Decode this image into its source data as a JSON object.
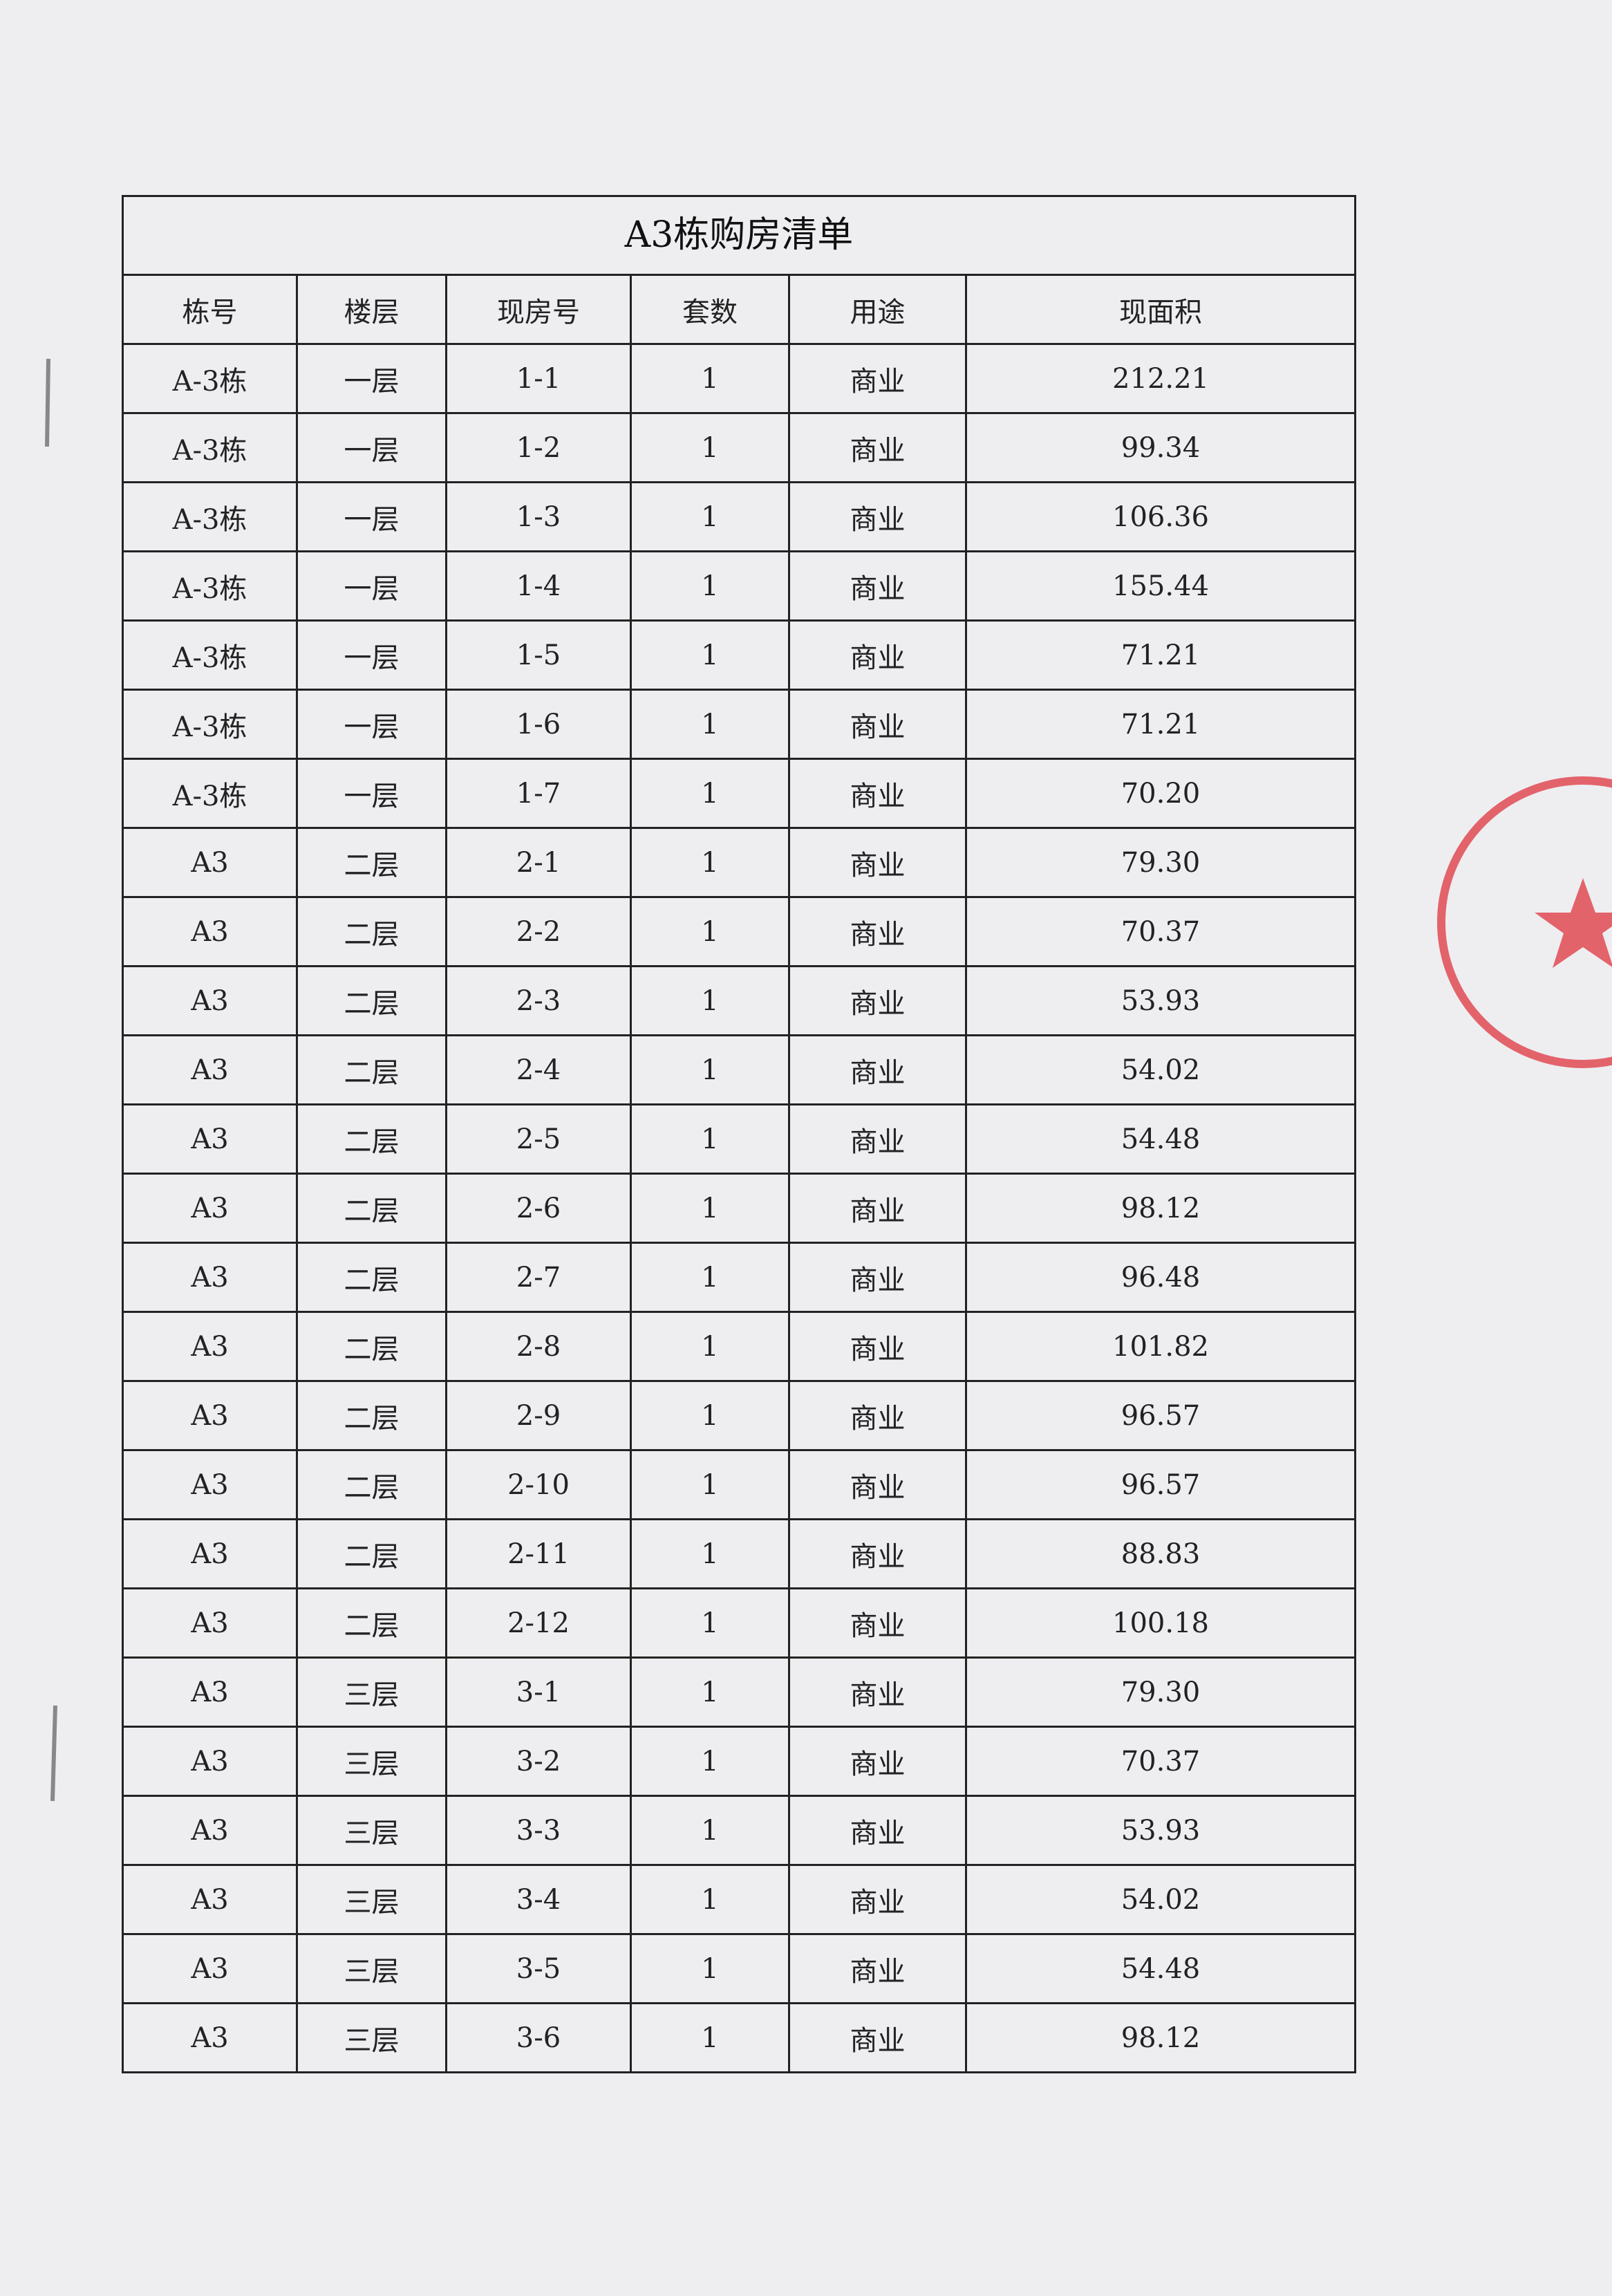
{
  "title": "A3栋购房清单",
  "table": {
    "header": [
      "栋号",
      "楼层",
      "现房号",
      "套数",
      "用途",
      "现面积"
    ],
    "rows": [
      [
        "A-3栋",
        "一层",
        "1-1",
        "1",
        "商业",
        "212.21"
      ],
      [
        "A-3栋",
        "一层",
        "1-2",
        "1",
        "商业",
        "99.34"
      ],
      [
        "A-3栋",
        "一层",
        "1-3",
        "1",
        "商业",
        "106.36"
      ],
      [
        "A-3栋",
        "一层",
        "1-4",
        "1",
        "商业",
        "155.44"
      ],
      [
        "A-3栋",
        "一层",
        "1-5",
        "1",
        "商业",
        "71.21"
      ],
      [
        "A-3栋",
        "一层",
        "1-6",
        "1",
        "商业",
        "71.21"
      ],
      [
        "A-3栋",
        "一层",
        "1-7",
        "1",
        "商业",
        "70.20"
      ],
      [
        "A3",
        "二层",
        "2-1",
        "1",
        "商业",
        "79.30"
      ],
      [
        "A3",
        "二层",
        "2-2",
        "1",
        "商业",
        "70.37"
      ],
      [
        "A3",
        "二层",
        "2-3",
        "1",
        "商业",
        "53.93"
      ],
      [
        "A3",
        "二层",
        "2-4",
        "1",
        "商业",
        "54.02"
      ],
      [
        "A3",
        "二层",
        "2-5",
        "1",
        "商业",
        "54.48"
      ],
      [
        "A3",
        "二层",
        "2-6",
        "1",
        "商业",
        "98.12"
      ],
      [
        "A3",
        "二层",
        "2-7",
        "1",
        "商业",
        "96.48"
      ],
      [
        "A3",
        "二层",
        "2-8",
        "1",
        "商业",
        "101.82"
      ],
      [
        "A3",
        "二层",
        "2-9",
        "1",
        "商业",
        "96.57"
      ],
      [
        "A3",
        "二层",
        "2-10",
        "1",
        "商业",
        "96.57"
      ],
      [
        "A3",
        "二层",
        "2-11",
        "1",
        "商业",
        "88.83"
      ],
      [
        "A3",
        "二层",
        "2-12",
        "1",
        "商业",
        "100.18"
      ],
      [
        "A3",
        "三层",
        "3-1",
        "1",
        "商业",
        "79.30"
      ],
      [
        "A3",
        "三层",
        "3-2",
        "1",
        "商业",
        "70.37"
      ],
      [
        "A3",
        "三层",
        "3-3",
        "1",
        "商业",
        "53.93"
      ],
      [
        "A3",
        "三层",
        "3-4",
        "1",
        "商业",
        "54.02"
      ],
      [
        "A3",
        "三层",
        "3-5",
        "1",
        "商业",
        "54.48"
      ],
      [
        "A3",
        "三层",
        "3-6",
        "1",
        "商业",
        "98.12"
      ]
    ]
  }
}
